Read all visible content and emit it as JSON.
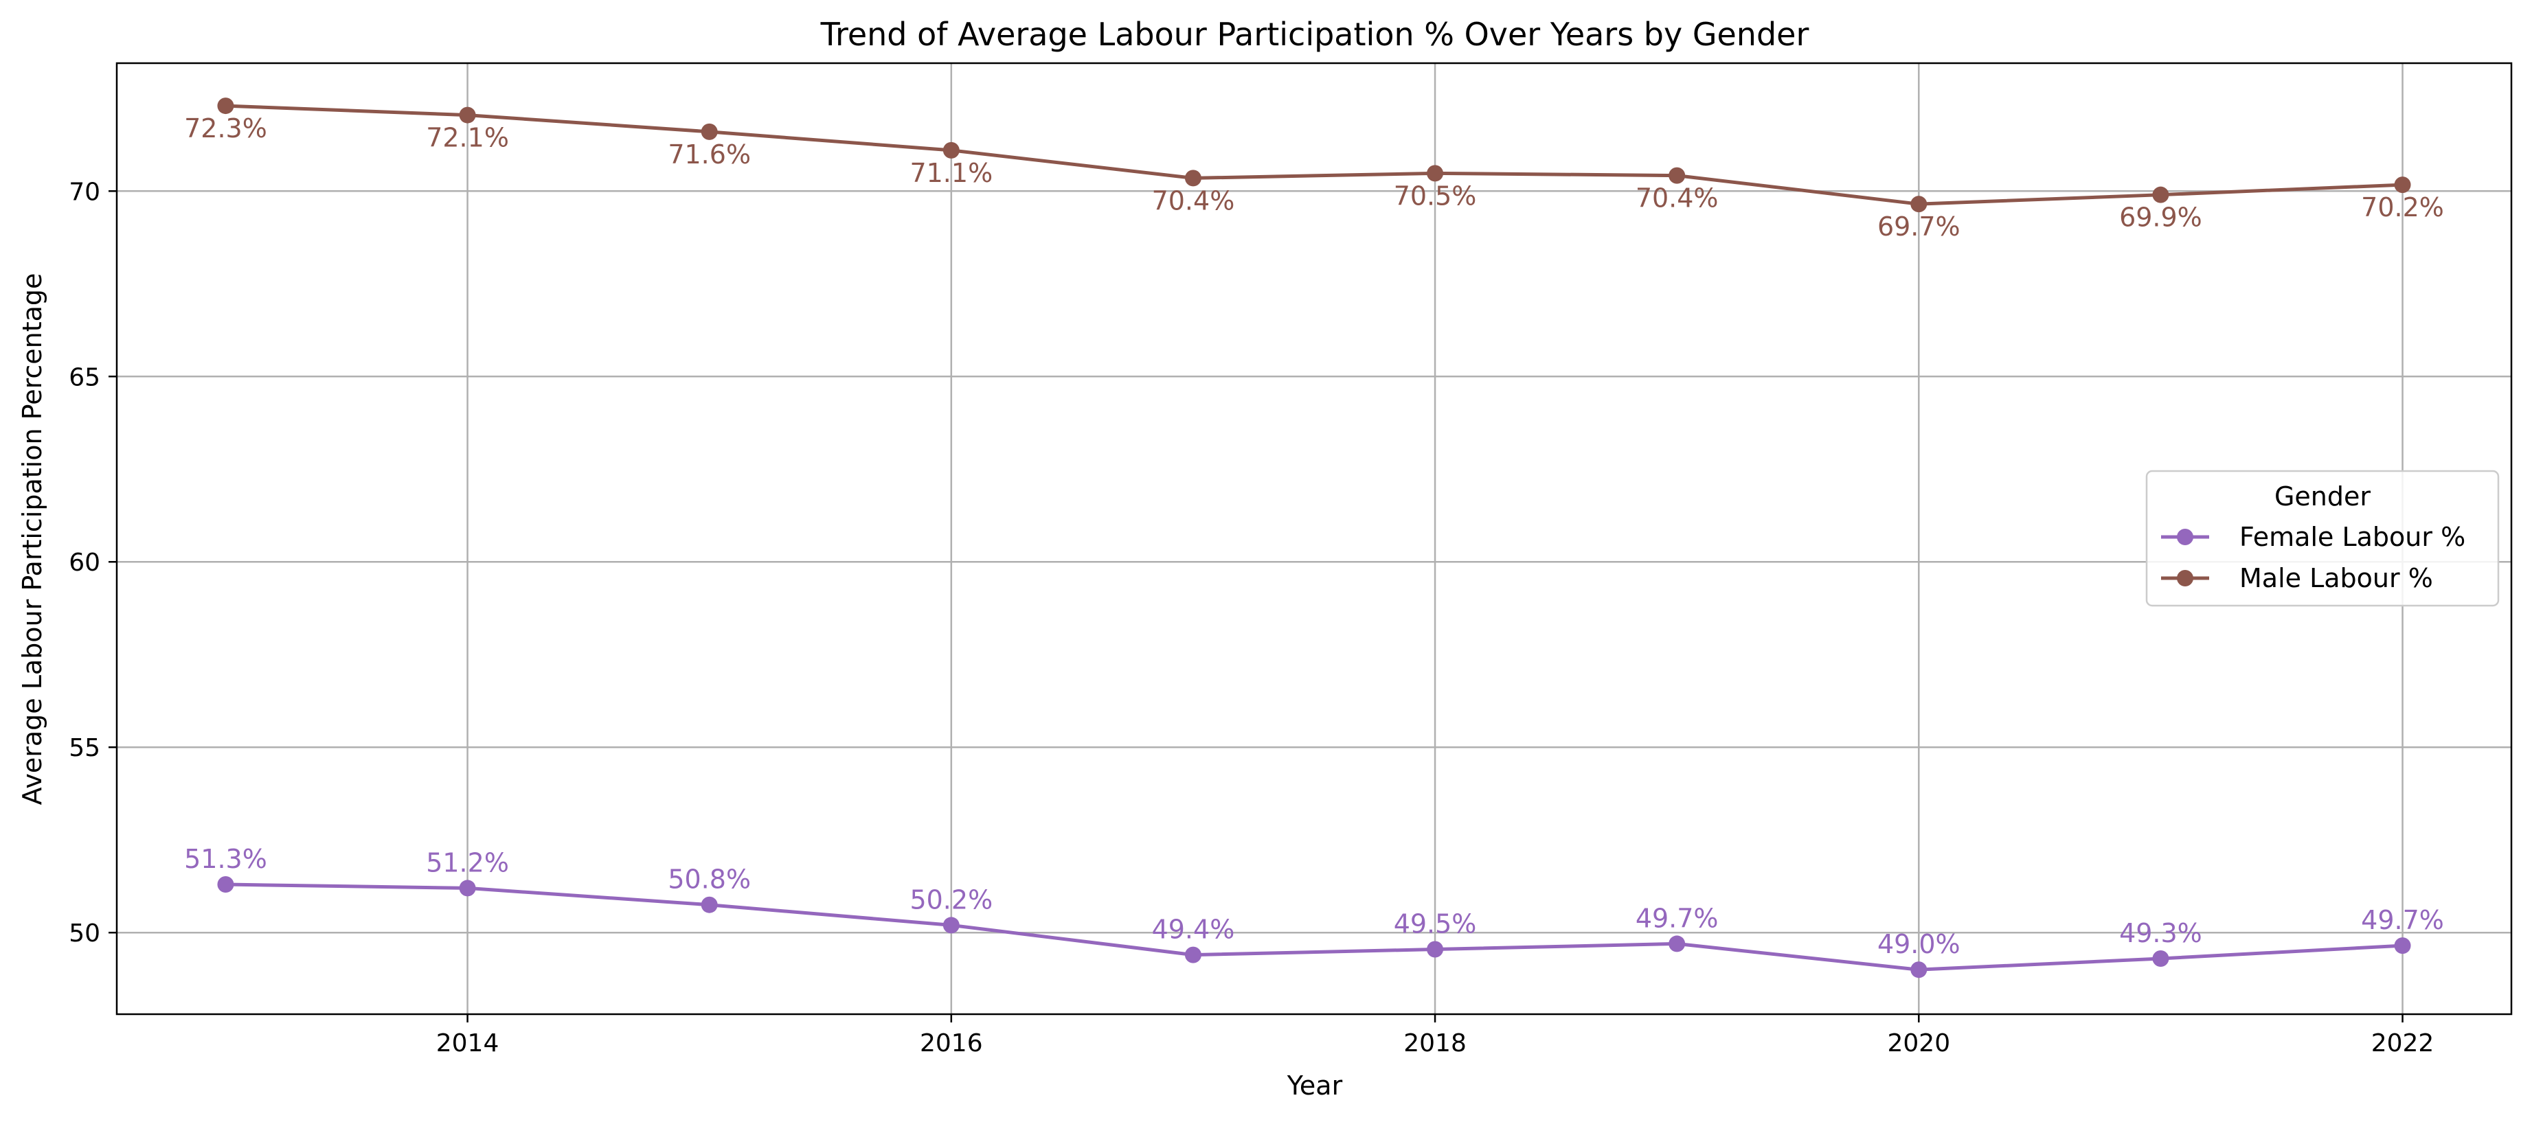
{
  "chart_data": {
    "type": "line",
    "title": "Trend of Average Labour Participation % Over Years by Gender",
    "xlabel": "Year",
    "ylabel": "Average Labour Participation Percentage",
    "x": [
      2013,
      2014,
      2015,
      2016,
      2017,
      2018,
      2019,
      2020,
      2021,
      2022
    ],
    "xlim": [
      2012.55,
      2022.45
    ],
    "ylim": [
      47.8,
      73.45
    ],
    "xticks": [
      2014,
      2016,
      2018,
      2020,
      2022
    ],
    "yticks": [
      50,
      55,
      60,
      65,
      70
    ],
    "grid": true,
    "legend": {
      "title": "Gender",
      "position": "center-right"
    },
    "series": [
      {
        "name": "Female Labour %",
        "color": "#9467bd",
        "values": [
          51.3,
          51.2,
          50.75,
          50.2,
          49.4,
          49.55,
          49.7,
          49.0,
          49.3,
          49.65
        ],
        "labels": [
          "51.3%",
          "51.2%",
          "50.8%",
          "50.2%",
          "49.4%",
          "49.5%",
          "49.7%",
          "49.0%",
          "49.3%",
          "49.7%"
        ],
        "label_position": "above"
      },
      {
        "name": "Male Labour %",
        "color": "#8c564b",
        "values": [
          72.3,
          72.05,
          71.6,
          71.1,
          70.35,
          70.48,
          70.42,
          69.65,
          69.9,
          70.17
        ],
        "labels": [
          "72.3%",
          "72.1%",
          "71.6%",
          "71.1%",
          "70.4%",
          "70.5%",
          "70.4%",
          "69.7%",
          "69.9%",
          "70.2%"
        ],
        "label_position": "below"
      }
    ]
  }
}
